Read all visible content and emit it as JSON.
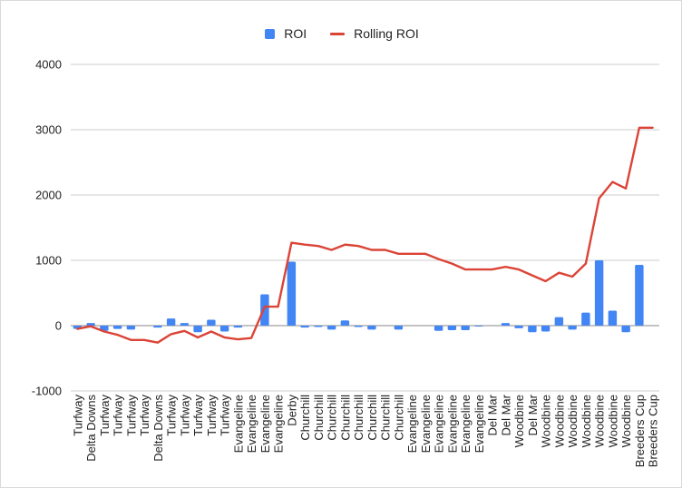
{
  "chart_data": {
    "type": "bar",
    "title": "",
    "xlabel": "",
    "ylabel": "",
    "ylim": [
      -1000,
      4000
    ],
    "yticks": [
      -1000,
      0,
      1000,
      2000,
      3000,
      4000
    ],
    "grid": true,
    "legend_position": "top-center",
    "categories": [
      "Turfway",
      "Delta Downs",
      "Turfway",
      "Turfway",
      "Turfway",
      "Turfway",
      "Delta Downs",
      "Turfway",
      "Turfway",
      "Turfway",
      "Turfway",
      "Turfway",
      "Evangeline",
      "Evangeline",
      "Evangeline",
      "Evangeline",
      "Derby",
      "Churchill",
      "Churchill",
      "Churchill",
      "Churchill",
      "Churchill",
      "Churchill",
      "Churchill",
      "Churchill",
      "Evangeline",
      "Evangeline",
      "Evangeline",
      "Evangeline",
      "Evangeline",
      "Evangeline",
      "Del Mar",
      "Del Mar",
      "Woodbine",
      "Del Mar",
      "Woodbine",
      "Woodbine",
      "Woodbine",
      "Woodbine",
      "Woodbine",
      "Woodbine",
      "Woodbine",
      "Breeders Cup",
      "Breeders Cup"
    ],
    "series": [
      {
        "name": "ROI",
        "kind": "bar",
        "color": "#4285f4",
        "values": [
          -50,
          40,
          -80,
          -50,
          -60,
          0,
          -30,
          110,
          40,
          -100,
          90,
          -90,
          -30,
          0,
          480,
          0,
          980,
          -30,
          -20,
          -60,
          80,
          -20,
          -60,
          0,
          -60,
          0,
          0,
          -80,
          -70,
          -70,
          -10,
          0,
          40,
          -40,
          -100,
          -90,
          130,
          -60,
          200,
          1000,
          230,
          -100,
          930,
          0
        ]
      },
      {
        "name": "Rolling ROI",
        "kind": "line",
        "color": "#db4437",
        "values": [
          -50,
          -10,
          -90,
          -140,
          -220,
          -220,
          -260,
          -130,
          -80,
          -180,
          -90,
          -180,
          -210,
          -190,
          290,
          290,
          1270,
          1240,
          1220,
          1160,
          1240,
          1220,
          1160,
          1160,
          1100,
          1100,
          1100,
          1020,
          950,
          860,
          860,
          860,
          900,
          860,
          770,
          680,
          810,
          750,
          950,
          1950,
          2200,
          2100,
          3030,
          3030
        ]
      }
    ]
  },
  "legend": {
    "items": [
      {
        "label": "ROI",
        "color": "#4285f4"
      },
      {
        "label": "Rolling ROI",
        "color": "#db4437"
      }
    ]
  }
}
